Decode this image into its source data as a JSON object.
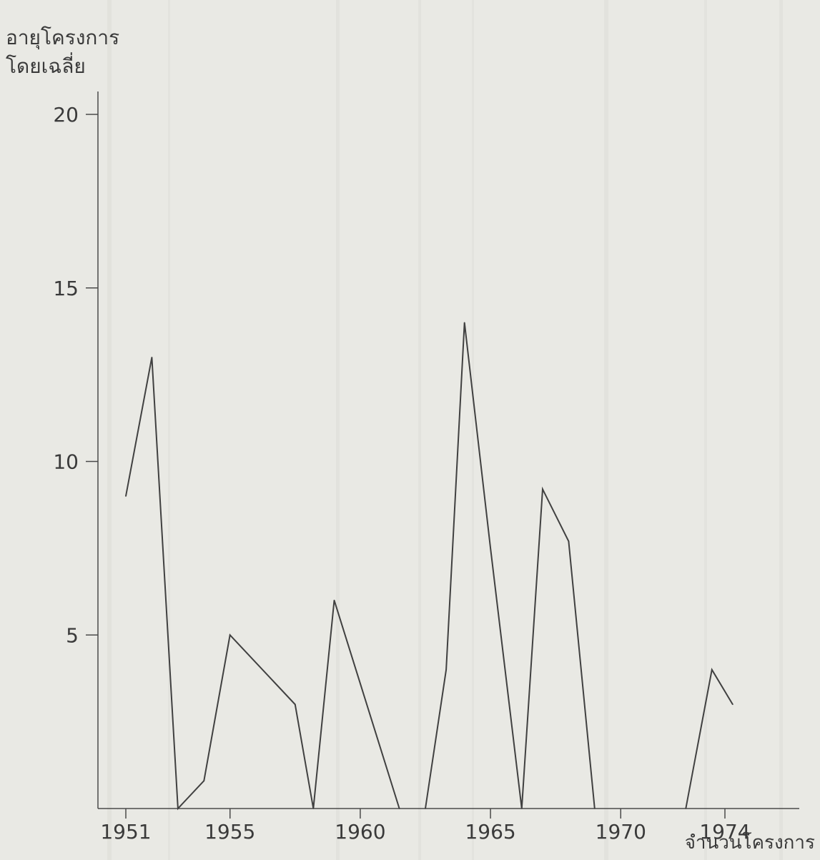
{
  "chart_data": {
    "type": "line",
    "title": "",
    "ylabel_lines": [
      "อายุโครงการ",
      "โดยเฉลี่ย"
    ],
    "xlabel": "จำนวนโครงการ",
    "xlim": [
      1951,
      1974
    ],
    "ylim": [
      0,
      20
    ],
    "xticks": [
      1951,
      1955,
      1960,
      1965,
      1970,
      1974
    ],
    "yticks": [
      5,
      10,
      15,
      20
    ],
    "grid": false,
    "series": [
      {
        "segments": [
          [
            [
              1951,
              9
            ],
            [
              1952,
              13
            ],
            [
              1953,
              0
            ],
            [
              1954,
              0.8
            ],
            [
              1955,
              5
            ],
            [
              1957.5,
              3
            ],
            [
              1958.2,
              0
            ],
            [
              1959,
              6
            ],
            [
              1961.5,
              0
            ]
          ],
          [
            [
              1962.5,
              0
            ],
            [
              1963.3,
              4
            ],
            [
              1964,
              14
            ],
            [
              1965,
              7.5
            ],
            [
              1966.2,
              0
            ],
            [
              1967,
              9.2
            ],
            [
              1968,
              7.7
            ],
            [
              1969,
              0
            ]
          ],
          [
            [
              1972.5,
              0
            ],
            [
              1973.5,
              4
            ],
            [
              1974.3,
              3
            ]
          ]
        ]
      }
    ]
  },
  "colors": {
    "line": "#404040",
    "axis": "#4a4a4a",
    "paper": "#e9e9e4"
  }
}
